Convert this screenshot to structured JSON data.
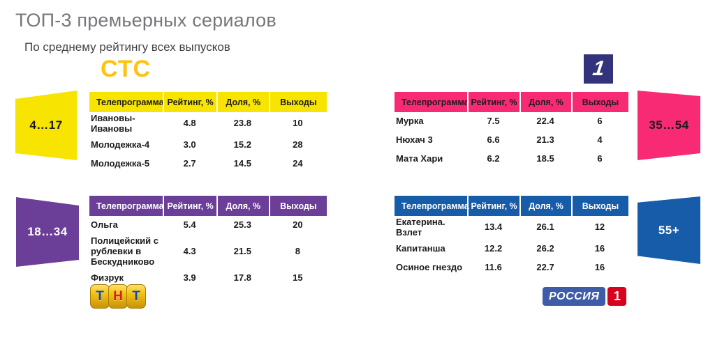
{
  "page": {
    "title": "ТОП-3 премьерных сериалов",
    "subtitle": "По среднему рейтингу всех выпусков"
  },
  "columns": [
    "Телепрограмма",
    "Рейтинг, %",
    "Доля, %",
    "Выходы"
  ],
  "sections": [
    {
      "channel": "СТС",
      "logo_text": "СТС",
      "logo_color": "#FFC20E",
      "age_group": "4…17",
      "accent": "#F7E400",
      "text_on_accent": "#1a1a1a",
      "rows": [
        [
          "Ивановы-Ивановы",
          "4.8",
          "23.8",
          "10"
        ],
        [
          "Молодежка-4",
          "3.0",
          "15.2",
          "28"
        ],
        [
          "Молодежка-5",
          "2.7",
          "14.5",
          "24"
        ]
      ]
    },
    {
      "channel": "Первый канал",
      "logo_text": "1",
      "logo_bg": "#32337B",
      "age_group": "35…54",
      "accent": "#F92A74",
      "text_on_accent": "#1a1a1a",
      "rows": [
        [
          "Мурка",
          "7.5",
          "22.4",
          "6"
        ],
        [
          "Нюхач 3",
          "6.6",
          "21.3",
          "4"
        ],
        [
          "Мата Хари",
          "6.2",
          "18.5",
          "6"
        ]
      ]
    },
    {
      "channel": "ТНТ",
      "logo_letters": [
        "Т",
        "Н",
        "Т"
      ],
      "logo_bg": "#F2C10F",
      "logo_blue": "#1C47A8",
      "logo_red": "#D51F26",
      "age_group": "18…34",
      "accent": "#6B3E98",
      "text_on_accent": "#ffffff",
      "rows": [
        [
          "Ольга",
          "5.4",
          "25.3",
          "20"
        ],
        [
          "Полицейский с рублевки в Бескудниково",
          "4.3",
          "21.5",
          "8"
        ],
        [
          "Физрук",
          "3.9",
          "17.8",
          "15"
        ]
      ]
    },
    {
      "channel": "Россия 1",
      "logo_text": "РОССИЯ",
      "logo_digit": "1",
      "logo_bg": "#3E5CA8",
      "logo_red": "#D6031C",
      "age_group": "55+",
      "accent": "#175CA9",
      "text_on_accent": "#ffffff",
      "rows": [
        [
          "Екатерина. Взлет",
          "13.4",
          "26.1",
          "12"
        ],
        [
          "Капитанша",
          "12.2",
          "26.2",
          "16"
        ],
        [
          "Осиное гнездо",
          "11.6",
          "22.7",
          "16"
        ]
      ]
    }
  ]
}
